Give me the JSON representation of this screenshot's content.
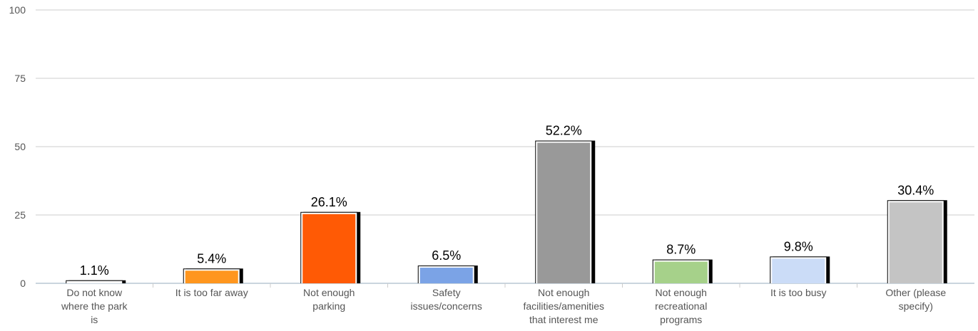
{
  "chart_data": {
    "type": "bar",
    "title": "",
    "xlabel": "",
    "ylabel": "",
    "ylim": [
      0,
      100
    ],
    "yticks": [
      0,
      25,
      50,
      75,
      100
    ],
    "grid": true,
    "categories": [
      [
        "Do not know",
        "where the park",
        "is"
      ],
      [
        "It is too far away"
      ],
      [
        "Not enough",
        "parking"
      ],
      [
        "Safety",
        "issues/concerns"
      ],
      [
        "Not enough",
        "facilities/amenities",
        "that interest me"
      ],
      [
        "Not enough",
        "recreational",
        "programs"
      ],
      [
        "It is too busy"
      ],
      [
        "Other (please",
        "specify)"
      ]
    ],
    "values": [
      1.1,
      5.4,
      26.1,
      6.5,
      52.2,
      8.7,
      9.8,
      30.4
    ],
    "data_labels": [
      "1.1%",
      "5.4%",
      "26.1%",
      "6.5%",
      "52.2%",
      "8.7%",
      "9.8%",
      "30.4%"
    ],
    "colors": [
      "#ffffff",
      "#ff961e",
      "#ff5a05",
      "#7ba3e6",
      "#999999",
      "#a6d18a",
      "#cbdcf7",
      "#c4c4c4"
    ]
  }
}
